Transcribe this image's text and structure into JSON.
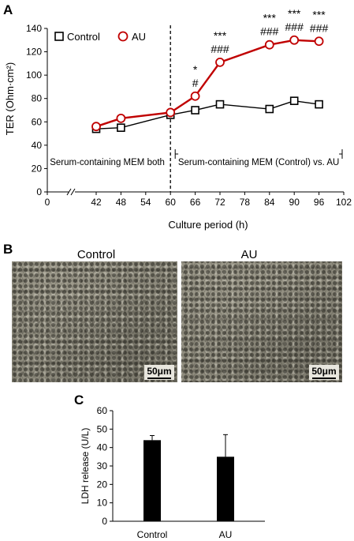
{
  "panel_labels": {
    "a": "A",
    "b": "B",
    "c": "C"
  },
  "chart_data": [
    {
      "type": "line",
      "panel": "A",
      "ylabel": "TER (Ohm·cm²)",
      "xlabel": "Culture period (h)",
      "xlim": [
        0,
        102
      ],
      "ylim": [
        0,
        140
      ],
      "x_ticks": [
        0,
        42,
        48,
        54,
        60,
        66,
        72,
        78,
        84,
        90,
        96,
        102
      ],
      "y_ticks": [
        0,
        20,
        40,
        60,
        80,
        100,
        120,
        140
      ],
      "axis_break": true,
      "legend_position": "top-left",
      "series": [
        {
          "name": "Control",
          "color": "#000000",
          "marker": "square",
          "x": [
            42,
            48,
            60,
            66,
            72,
            84,
            90,
            96
          ],
          "y": [
            54,
            55,
            66,
            70,
            75,
            71,
            78,
            75
          ],
          "err": [
            2,
            2,
            2,
            2,
            2,
            2,
            2,
            2
          ]
        },
        {
          "name": "AU",
          "color": "#c00000",
          "marker": "circle",
          "x": [
            42,
            48,
            60,
            66,
            72,
            84,
            90,
            96
          ],
          "y": [
            56,
            63,
            68,
            82,
            111,
            126,
            130,
            129
          ],
          "err": [
            2,
            2,
            2,
            2,
            2,
            2,
            2,
            2
          ]
        }
      ],
      "significance": [
        {
          "x": 66,
          "lines": [
            "*",
            "#"
          ]
        },
        {
          "x": 72,
          "lines": [
            "***",
            "###"
          ]
        },
        {
          "x": 84,
          "lines": [
            "***",
            "###"
          ]
        },
        {
          "x": 90,
          "lines": [
            "***",
            "###"
          ]
        },
        {
          "x": 96,
          "lines": [
            "***",
            "###"
          ]
        }
      ],
      "divider_x": 60,
      "phases": [
        {
          "label": "Serum-containing MEM both",
          "from": 0,
          "to": 60
        },
        {
          "label": "Serum-containing MEM (Control) vs. AU",
          "from": 60,
          "to": 102
        }
      ]
    },
    {
      "type": "bar",
      "panel": "C",
      "ylabel": "LDH release (U/L)",
      "categories": [
        "Control",
        "AU"
      ],
      "values": [
        44,
        35
      ],
      "errors": [
        2.5,
        12
      ],
      "ylim": [
        0,
        60
      ],
      "y_ticks": [
        0,
        10,
        20,
        30,
        40,
        50,
        60
      ],
      "bar_color": "#000000"
    }
  ],
  "micrographs": {
    "control_label": "Control",
    "au_label": "AU",
    "scale_label": "50μm"
  }
}
